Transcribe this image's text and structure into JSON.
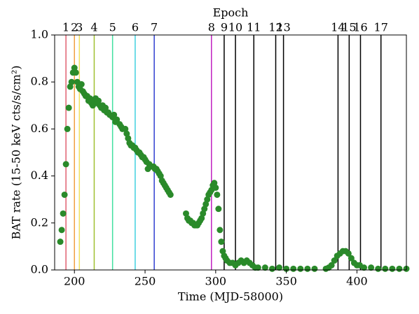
{
  "chart_data": {
    "type": "scatter",
    "xlabel": "Time (MJD-58000)",
    "ylabel": "BAT rate (15-50 keV cts/s/cm²)",
    "top_label": "Epoch",
    "color": "#2a8a2a",
    "xlim": [
      186,
      435
    ],
    "ylim": [
      0,
      1
    ],
    "xticks": [
      200,
      250,
      300,
      350,
      400
    ],
    "yticks": [
      {
        "value": 0,
        "label": "0.0"
      },
      {
        "value": 0.2,
        "label": "0.2"
      },
      {
        "value": 0.4,
        "label": "0.4"
      },
      {
        "value": 0.6,
        "label": "0.6"
      },
      {
        "value": 0.8,
        "label": "0.8"
      },
      {
        "value": 1,
        "label": "1.0"
      }
    ],
    "x": [
      190,
      191,
      192,
      193,
      194,
      195,
      196,
      197,
      198,
      199,
      200,
      201,
      202,
      203,
      204,
      205,
      206,
      207,
      208,
      209,
      210,
      211,
      212,
      213,
      214,
      215,
      216,
      217,
      218,
      219,
      220,
      221,
      222,
      223,
      224,
      225,
      227,
      228,
      229,
      230,
      232,
      233,
      234,
      236,
      237,
      238,
      239,
      240,
      241,
      242,
      243,
      244,
      245,
      246,
      247,
      248,
      249,
      250,
      251,
      252,
      253,
      254,
      256,
      257,
      258,
      259,
      260,
      261,
      262,
      263,
      264,
      265,
      266,
      267,
      268,
      279,
      280,
      281,
      282,
      283,
      284,
      285,
      286,
      287,
      288,
      289,
      290,
      291,
      292,
      293,
      294,
      295,
      296,
      297,
      298,
      299,
      300,
      301,
      302,
      303,
      304,
      305,
      306,
      307,
      308,
      310,
      312,
      314,
      316,
      318,
      320,
      322,
      324,
      326,
      328,
      330,
      335,
      340,
      345,
      350,
      355,
      360,
      365,
      370,
      378,
      380,
      382,
      384,
      386,
      388,
      390,
      392,
      394,
      396,
      398,
      400,
      402,
      405,
      410,
      415,
      420,
      425,
      430,
      435
    ],
    "values": [
      0.12,
      0.17,
      0.24,
      0.32,
      0.45,
      0.6,
      0.69,
      0.78,
      0.8,
      0.84,
      0.86,
      0.84,
      0.8,
      0.78,
      0.77,
      0.79,
      0.76,
      0.75,
      0.74,
      0.74,
      0.72,
      0.73,
      0.71,
      0.7,
      0.72,
      0.73,
      0.71,
      0.72,
      0.7,
      0.69,
      0.7,
      0.68,
      0.69,
      0.67,
      0.67,
      0.66,
      0.65,
      0.66,
      0.63,
      0.64,
      0.62,
      0.61,
      0.6,
      0.6,
      0.58,
      0.56,
      0.54,
      0.53,
      0.53,
      0.52,
      0.52,
      0.51,
      0.5,
      0.5,
      0.49,
      0.48,
      0.48,
      0.47,
      0.46,
      0.43,
      0.45,
      0.44,
      0.44,
      0.43,
      0.43,
      0.42,
      0.41,
      0.4,
      0.38,
      0.37,
      0.36,
      0.35,
      0.34,
      0.33,
      0.32,
      0.24,
      0.22,
      0.21,
      0.21,
      0.2,
      0.2,
      0.19,
      0.19,
      0.19,
      0.2,
      0.21,
      0.22,
      0.24,
      0.26,
      0.28,
      0.3,
      0.32,
      0.33,
      0.34,
      0.36,
      0.37,
      0.35,
      0.32,
      0.26,
      0.17,
      0.12,
      0.08,
      0.06,
      0.05,
      0.04,
      0.03,
      0.03,
      0.02,
      0.03,
      0.04,
      0.03,
      0.04,
      0.03,
      0.02,
      0.01,
      0.01,
      0.01,
      0.005,
      0.01,
      0.005,
      0.005,
      0.005,
      0.005,
      0.005,
      0.005,
      0.01,
      0.02,
      0.04,
      0.06,
      0.07,
      0.08,
      0.08,
      0.07,
      0.05,
      0.03,
      0.02,
      0.02,
      0.01,
      0.01,
      0.005,
      0.005,
      0.005,
      0.005,
      0.005
    ],
    "epochs": {
      "values": [
        194,
        200,
        203.5,
        214,
        227,
        243,
        256.5,
        297,
        306,
        314,
        327,
        342.5,
        348,
        386.6,
        394.5,
        402.5,
        417
      ],
      "labels": [
        "1",
        "2",
        "3",
        "4",
        "5",
        "6",
        "7",
        "8",
        "9",
        "10",
        "11",
        "12",
        "13",
        "14",
        "15",
        "16",
        "17"
      ],
      "colors": [
        "#e06070",
        "#f0a040",
        "#f0e060",
        "#a0c030",
        "#40e0a0",
        "#40d0e0",
        "#3040d0",
        "#c020c0",
        "#000000",
        "#000000",
        "#000000",
        "#000000",
        "#000000",
        "#000000",
        "#000000",
        "#000000",
        "#000000"
      ]
    }
  }
}
